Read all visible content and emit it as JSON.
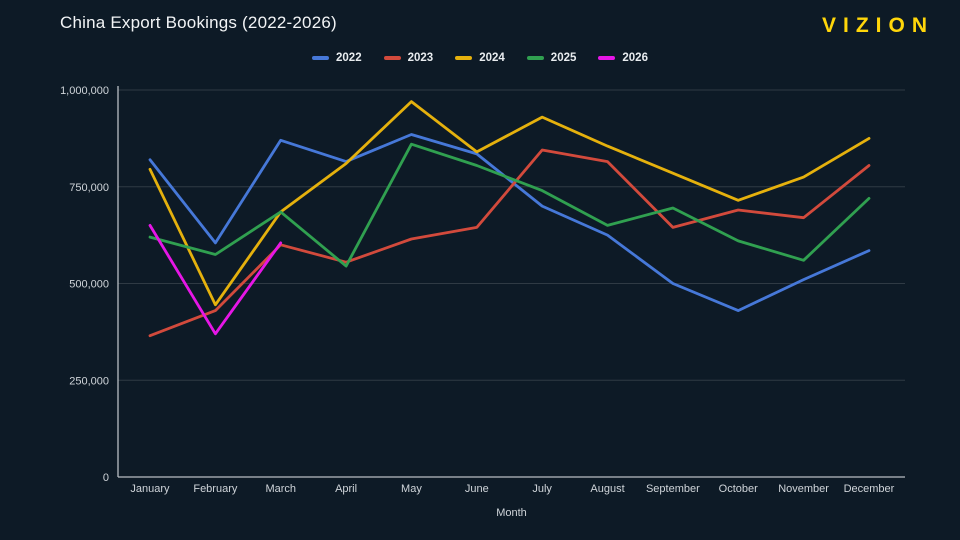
{
  "header": {
    "title": "China Export Bookings (2022-2026)",
    "logo_text": "VIZION",
    "logo_color": "#ffd60a"
  },
  "chart_data": {
    "type": "line",
    "title": "China Export Bookings (2022-2026)",
    "x": [
      "January",
      "February",
      "March",
      "April",
      "May",
      "June",
      "July",
      "August",
      "September",
      "October",
      "November",
      "December"
    ],
    "xlabel": "Month",
    "ylabel": "",
    "ylim": [
      0,
      1000000
    ],
    "yticks": [
      0,
      250000,
      500000,
      750000,
      1000000
    ],
    "ytick_labels": [
      "0",
      "250,000",
      "500,000",
      "750,000",
      "1,000,000"
    ],
    "grid": true,
    "legend_position": "top-center",
    "series": [
      {
        "name": "2022",
        "color": "#4678d8",
        "values": [
          820000,
          605000,
          870000,
          815000,
          885000,
          835000,
          700000,
          625000,
          500000,
          430000,
          510000,
          585000
        ]
      },
      {
        "name": "2023",
        "color": "#d24a3c",
        "values": [
          365000,
          430000,
          600000,
          555000,
          615000,
          645000,
          845000,
          815000,
          645000,
          690000,
          670000,
          805000
        ]
      },
      {
        "name": "2024",
        "color": "#e5b10d",
        "values": [
          795000,
          445000,
          685000,
          810000,
          970000,
          840000,
          930000,
          855000,
          785000,
          715000,
          775000,
          875000
        ]
      },
      {
        "name": "2025",
        "color": "#30a050",
        "values": [
          620000,
          575000,
          685000,
          545000,
          860000,
          805000,
          740000,
          650000,
          695000,
          610000,
          560000,
          720000
        ]
      },
      {
        "name": "2026",
        "color": "#e616e6",
        "values": [
          650000,
          370000,
          605000,
          null,
          null,
          null,
          null,
          null,
          null,
          null,
          null,
          null
        ]
      }
    ]
  }
}
